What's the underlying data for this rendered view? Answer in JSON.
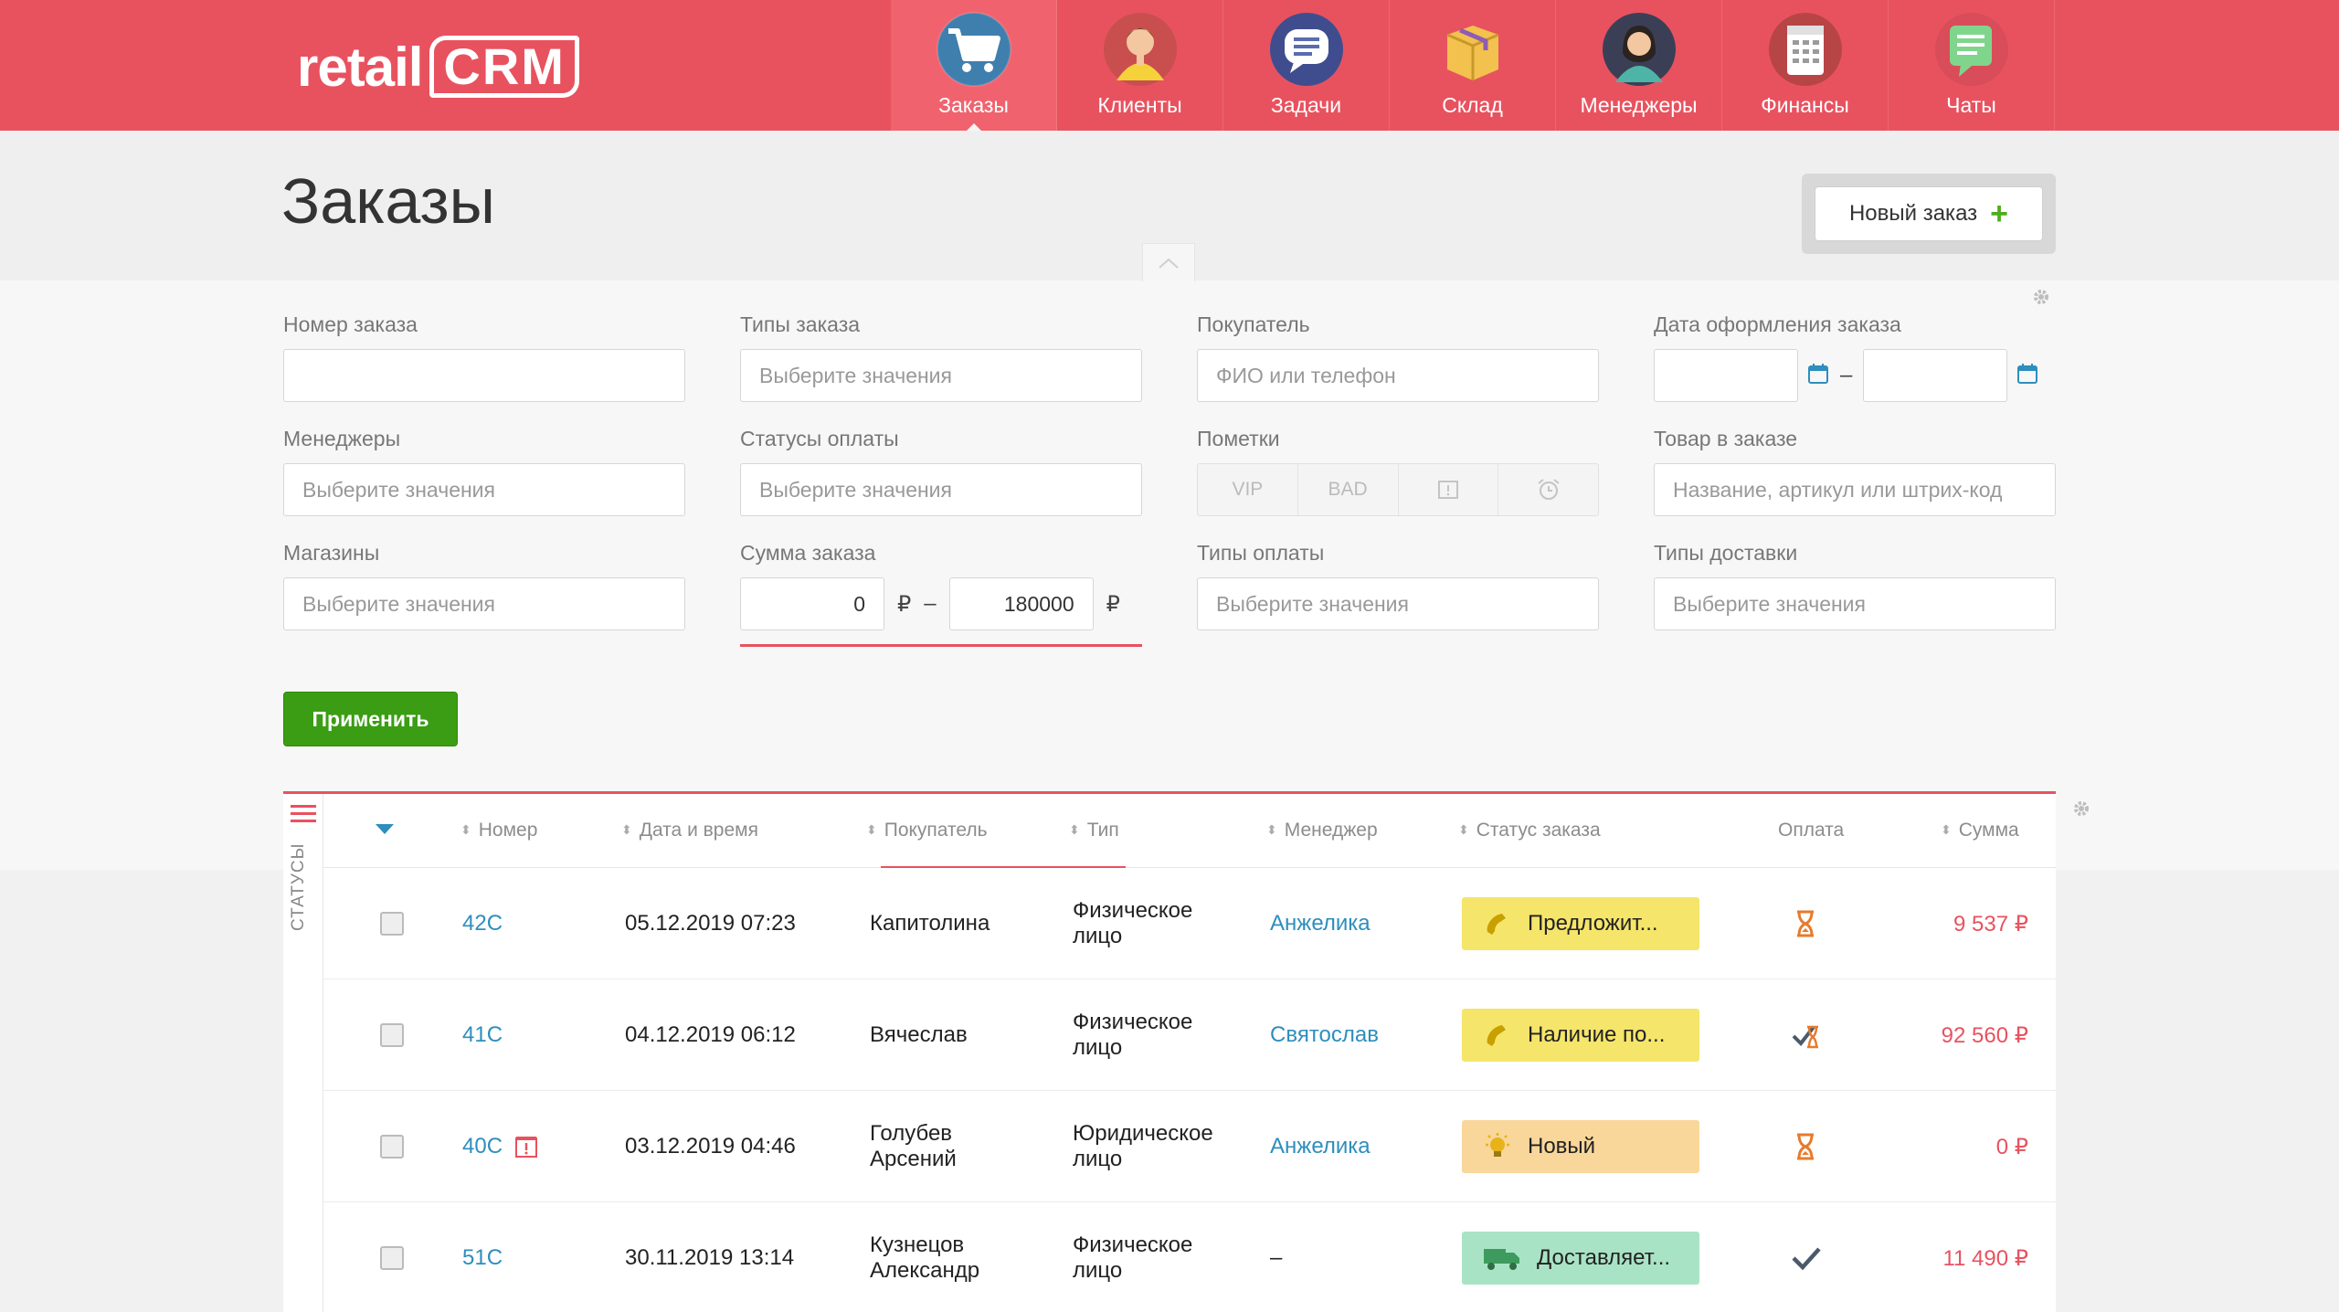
{
  "app": {
    "logo_text": "retail",
    "logo_mark": "CRM"
  },
  "nav": [
    {
      "label": "Заказы",
      "icon": "cart-icon",
      "active": true
    },
    {
      "label": "Клиенты",
      "icon": "client-icon"
    },
    {
      "label": "Задачи",
      "icon": "tasks-icon"
    },
    {
      "label": "Склад",
      "icon": "warehouse-icon"
    },
    {
      "label": "Менеджеры",
      "icon": "manager-icon"
    },
    {
      "label": "Финансы",
      "icon": "finance-icon"
    },
    {
      "label": "Чаты",
      "icon": "chat-icon"
    }
  ],
  "page": {
    "title": "Заказы",
    "new_order_label": "Новый заказ"
  },
  "filters": {
    "order_number": {
      "label": "Номер заказа",
      "value": "",
      "placeholder": ""
    },
    "order_types": {
      "label": "Типы заказа",
      "placeholder": "Выберите значения"
    },
    "customer": {
      "label": "Покупатель",
      "placeholder": "ФИО или телефон"
    },
    "order_date": {
      "label": "Дата оформления заказа",
      "separator": "–"
    },
    "managers": {
      "label": "Менеджеры",
      "placeholder": "Выберите значения"
    },
    "payment_statuses": {
      "label": "Статусы оплаты",
      "placeholder": "Выберите значения"
    },
    "marks": {
      "label": "Пометки",
      "items": [
        "VIP",
        "BAD"
      ]
    },
    "product": {
      "label": "Товар в заказе",
      "placeholder": "Название, артикул или штрих-код"
    },
    "shops": {
      "label": "Магазины",
      "placeholder": "Выберите значения"
    },
    "order_sum": {
      "label": "Сумма заказа",
      "from": "0",
      "to": "180000",
      "currency": "₽",
      "separator": "–"
    },
    "payment_types": {
      "label": "Типы оплаты",
      "placeholder": "Выберите значения"
    },
    "delivery_types": {
      "label": "Типы доставки",
      "placeholder": "Выберите значения"
    },
    "apply_label": "Применить"
  },
  "table": {
    "statuses_label": "СТАТУСЫ",
    "columns": {
      "number": "Номер",
      "datetime": "Дата и время",
      "customer": "Покупатель",
      "type": "Тип",
      "manager": "Менеджер",
      "status": "Статус заказа",
      "payment": "Оплата",
      "sum": "Сумма"
    },
    "rows": [
      {
        "number": "42C",
        "datetime": "05.12.2019 07:23",
        "customer": "Капитолина",
        "type": "Физическое лицо",
        "manager": "Анжелика",
        "status": "Предложит...",
        "status_color": "#f5e56b",
        "status_icon": "phone-icon",
        "payment_icon": "hourglass-icon",
        "sum": "9 537 ₽"
      },
      {
        "number": "41C",
        "datetime": "04.12.2019 06:12",
        "customer": "Вячеслав",
        "type": "Физическое лицо",
        "manager": "Святослав",
        "status": "Наличие по...",
        "status_color": "#f5e56b",
        "status_icon": "phone-icon",
        "payment_icon": "partial-paid-icon",
        "sum": "92 560 ₽"
      },
      {
        "number": "40C",
        "datetime": "03.12.2019 04:46",
        "customer": "Голубев Арсений",
        "type": "Юридическое лицо",
        "manager": "Анжелика",
        "status": "Новый",
        "status_color": "#f9d79a",
        "status_icon": "bulb-icon",
        "payment_icon": "hourglass-icon",
        "sum": "0 ₽",
        "has_note_icon": true
      },
      {
        "number": "51C",
        "datetime": "30.11.2019 13:14",
        "customer": "Кузнецов Александр",
        "type": "Физическое лицо",
        "manager": "–",
        "status": "Доставляет...",
        "status_color": "#a9e3c5",
        "status_icon": "truck-icon",
        "payment_icon": "check-icon",
        "sum": "11 490 ₽"
      }
    ]
  },
  "colors": {
    "brand": "#e8525f",
    "link": "#2e8ebd",
    "apply": "#3b9d13",
    "sum": "#e8525f"
  }
}
